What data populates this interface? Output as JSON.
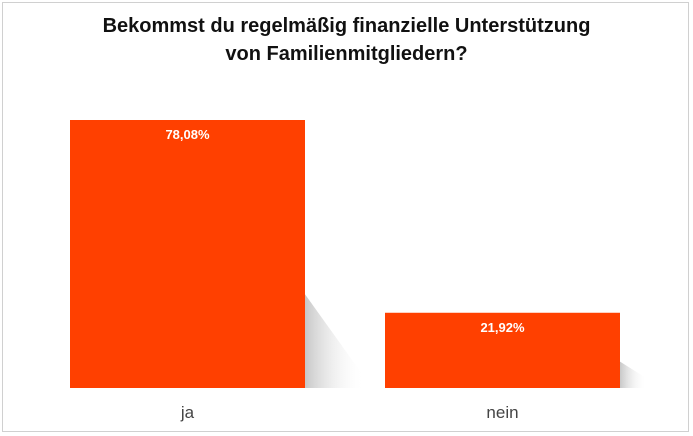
{
  "chart_data": {
    "type": "bar",
    "title": "Bekommst du regelmäßig finanzielle Unterstützung\nvon Familienmitgliedern?",
    "categories": [
      "ja",
      "nein"
    ],
    "values": [
      78.08,
      21.92
    ],
    "value_labels": [
      "78,08%",
      "21,92%"
    ],
    "ylim": [
      0,
      78.08
    ],
    "grid": false,
    "legend": "none",
    "bar_color": "#ff4000",
    "label_color": "#ffffff"
  }
}
